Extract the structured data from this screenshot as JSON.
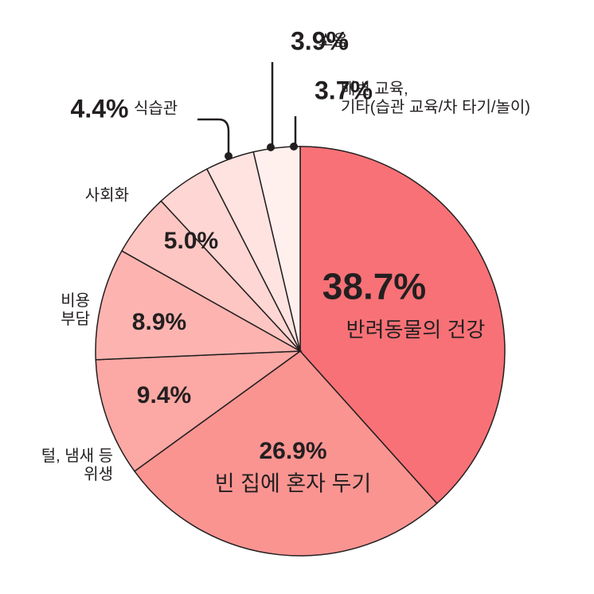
{
  "chart_data": {
    "type": "pie",
    "categories": [
      "반려동물의 건강",
      "빈 집에 혼자 두기",
      "털, 냄새 등\n위생",
      "비용\n부담",
      "사회화",
      "식습관",
      "소음",
      "배변 교육,\n기타(습관 교육/차 타기/놀이)"
    ],
    "values": [
      38.7,
      26.9,
      9.4,
      8.9,
      5.0,
      4.4,
      3.9,
      3.7
    ],
    "value_labels": [
      "38.7%",
      "26.9%",
      "9.4%",
      "8.9%",
      "5.0%",
      "4.4%",
      "3.9%",
      "3.7%"
    ],
    "colors": [
      "#f87176",
      "#fa9491",
      "#fca8a4",
      "#fdb4b0",
      "#fec6c2",
      "#fed6d3",
      "#ffe3e0",
      "#fff0ee"
    ]
  }
}
